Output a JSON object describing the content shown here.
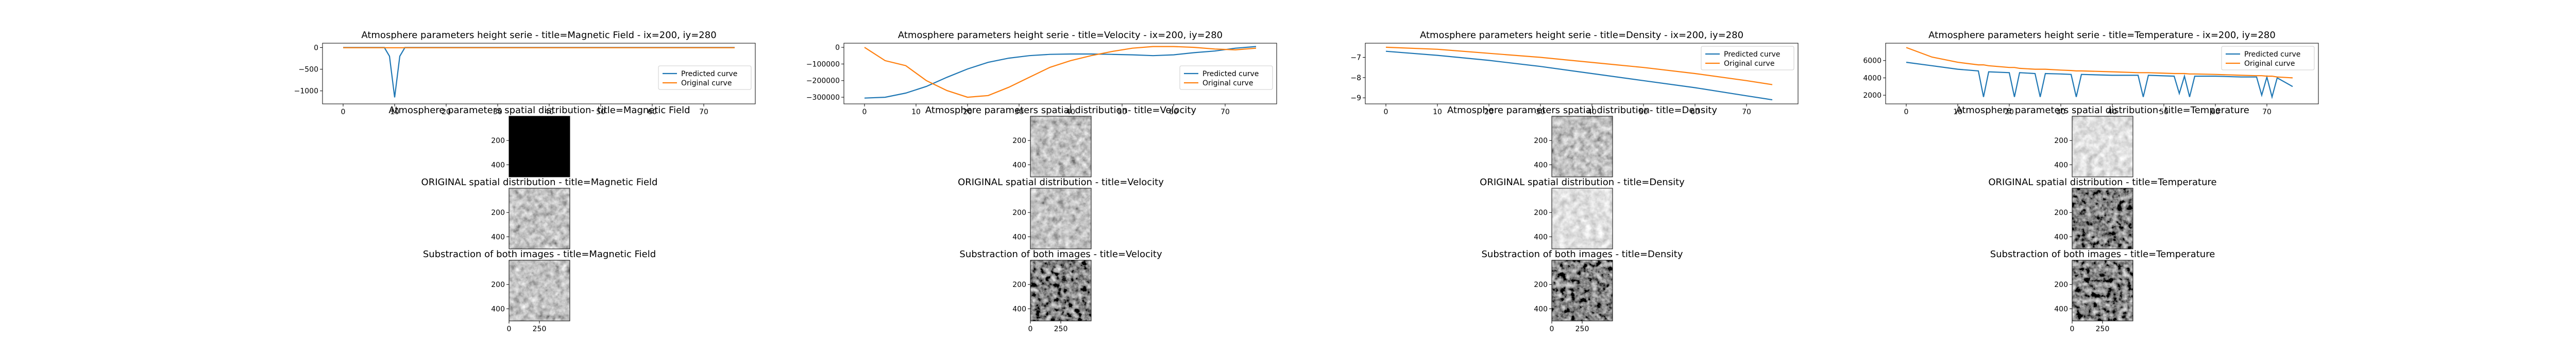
{
  "colors": {
    "predicted": "#1f77b4",
    "original": "#ff7f0e"
  },
  "legend": {
    "predicted": "Predicted curve",
    "original": "Original curve"
  },
  "columns": [
    {
      "line_chart": {
        "type": "line",
        "title": "Atmosphere parameters height serie - title=Magnetic Field - ix=200, iy=280",
        "legend_position": "center-right",
        "xlim": [
          -4,
          80
        ],
        "ylim": [
          -1300,
          100
        ],
        "xticks": [
          0,
          10,
          20,
          30,
          40,
          50,
          60,
          70
        ],
        "yticks": [
          0,
          -500,
          -1000
        ],
        "x": [
          0,
          2,
          4,
          6,
          8,
          9,
          10,
          11,
          12,
          14,
          16,
          18,
          20,
          22,
          24,
          26,
          28,
          30,
          32,
          34,
          36,
          38,
          40,
          42,
          44,
          46,
          48,
          50,
          52,
          54,
          56,
          58,
          60,
          62,
          64,
          66,
          68,
          70,
          72,
          74,
          76
        ],
        "series": [
          {
            "name": "Predicted curve",
            "values": [
              0,
              0,
              0,
              0,
              0,
              -200,
              -1150,
              -200,
              0,
              0,
              0,
              0,
              0,
              0,
              0,
              0,
              0,
              0,
              0,
              0,
              0,
              0,
              0,
              0,
              0,
              0,
              0,
              0,
              0,
              0,
              0,
              0,
              0,
              0,
              0,
              0,
              0,
              0,
              0,
              0,
              0
            ]
          },
          {
            "name": "Original curve",
            "values": [
              -5,
              -5,
              -5,
              -5,
              -5,
              -5,
              -5,
              -5,
              -5,
              -5,
              -5,
              -5,
              -5,
              -5,
              -5,
              -5,
              -5,
              -5,
              -5,
              -5,
              -5,
              -5,
              -5,
              -5,
              -5,
              -5,
              -5,
              -5,
              -5,
              -5,
              -5,
              -5,
              -5,
              -5,
              -5,
              -5,
              -5,
              -5,
              -5,
              -5,
              -5
            ]
          }
        ]
      },
      "images": [
        {
          "title": "Atmosphere parameters spatial distribution- title=Magnetic Field",
          "tone": "black"
        },
        {
          "title": "ORIGINAL spatial distribution - title=Magnetic Field",
          "tone": "gray"
        },
        {
          "title": "Substraction of both images - title=Magnetic Field",
          "tone": "gray"
        }
      ]
    },
    {
      "line_chart": {
        "type": "line",
        "title": "Atmosphere parameters height serie - title=Velocity - ix=200, iy=280",
        "legend_position": "center-right",
        "xlim": [
          -4,
          80
        ],
        "ylim": [
          -340000,
          25000
        ],
        "xticks": [
          0,
          10,
          20,
          30,
          40,
          50,
          60,
          70
        ],
        "yticks": [
          0,
          -100000,
          -200000,
          -300000
        ],
        "x": [
          0,
          4,
          8,
          12,
          16,
          20,
          24,
          28,
          32,
          36,
          40,
          44,
          48,
          52,
          56,
          60,
          64,
          68,
          72,
          76
        ],
        "series": [
          {
            "name": "Predicted curve",
            "values": [
              -305000,
              -300000,
              -275000,
              -235000,
              -180000,
              -130000,
              -90000,
              -65000,
              -50000,
              -42000,
              -40000,
              -40000,
              -42000,
              -45000,
              -50000,
              -45000,
              -32000,
              -22000,
              -5000,
              5000
            ]
          },
          {
            "name": "Original curve",
            "values": [
              0,
              -80000,
              -110000,
              -200000,
              -260000,
              -300000,
              -290000,
              -240000,
              -180000,
              -120000,
              -80000,
              -50000,
              -25000,
              -5000,
              5000,
              5000,
              0,
              -10000,
              -15000,
              -5000
            ]
          }
        ]
      },
      "images": [
        {
          "title": "Atmosphere parameters spatial distribution- title=Velocity",
          "tone": "gray"
        },
        {
          "title": "ORIGINAL spatial distribution - title=Velocity",
          "tone": "gray"
        },
        {
          "title": "Substraction of both images - title=Velocity",
          "tone": "dark"
        }
      ]
    },
    {
      "line_chart": {
        "type": "line",
        "title": "Atmosphere parameters height serie - title=Density - ix=200, iy=280",
        "legend_position": "upper-right",
        "xlim": [
          -4,
          80
        ],
        "ylim": [
          -9.3,
          -6.3
        ],
        "xticks": [
          0,
          10,
          20,
          30,
          40,
          50,
          60,
          70
        ],
        "yticks": [
          -7,
          -8,
          -9
        ],
        "x": [
          0,
          10,
          20,
          30,
          40,
          50,
          60,
          70,
          75
        ],
        "series": [
          {
            "name": "Predicted curve",
            "values": [
              -6.7,
              -6.9,
              -7.15,
              -7.45,
              -7.8,
              -8.15,
              -8.5,
              -8.9,
              -9.1
            ]
          },
          {
            "name": "Original curve",
            "values": [
              -6.5,
              -6.6,
              -6.8,
              -7.0,
              -7.25,
              -7.5,
              -7.8,
              -8.15,
              -8.35
            ]
          }
        ]
      },
      "images": [
        {
          "title": "Atmosphere parameters spatial distribution- title=Density",
          "tone": "gray"
        },
        {
          "title": "ORIGINAL spatial distribution - title=Density",
          "tone": "light"
        },
        {
          "title": "Substraction of both images - title=Density",
          "tone": "dark"
        }
      ]
    },
    {
      "line_chart": {
        "type": "line",
        "title": "Atmosphere parameters height serie - title=Temperature - ix=200, iy=280",
        "legend_position": "upper-right",
        "xlim": [
          -4,
          80
        ],
        "ylim": [
          1000,
          8000
        ],
        "xticks": [
          0,
          10,
          20,
          30,
          40,
          50,
          60,
          70
        ],
        "yticks": [
          2000,
          4000,
          6000
        ],
        "x": [
          0,
          5,
          10,
          14,
          15,
          16,
          20,
          21,
          22,
          25,
          26,
          27,
          30,
          32,
          33,
          34,
          40,
          45,
          46,
          47,
          52,
          53,
          54,
          55,
          56,
          60,
          65,
          68,
          69,
          70,
          71,
          72,
          75
        ],
        "series": [
          {
            "name": "Predicted curve",
            "values": [
              5800,
              5400,
              5000,
              4800,
              1800,
              4700,
              4600,
              1800,
              4600,
              4500,
              1800,
              4500,
              4450,
              4400,
              1800,
              4400,
              4300,
              4300,
              1800,
              4300,
              4200,
              2200,
              4200,
              1800,
              4200,
              4200,
              4100,
              4100,
              2000,
              4100,
              1800,
              4000,
              3000
            ]
          },
          {
            "name": "Original curve",
            "values": [
              7500,
              6400,
              5800,
              5500,
              5500,
              5400,
              5200,
              5200,
              5100,
              5000,
              5000,
              5000,
              4900,
              4850,
              4800,
              4800,
              4700,
              4600,
              4600,
              4600,
              4500,
              4500,
              4500,
              4450,
              4450,
              4400,
              4300,
              4250,
              4250,
              4200,
              4200,
              4100,
              4000
            ]
          }
        ]
      },
      "images": [
        {
          "title": "Atmosphere parameters spatial distribution- title=Temperature",
          "tone": "light"
        },
        {
          "title": "ORIGINAL spatial distribution - title=Temperature",
          "tone": "dark"
        },
        {
          "title": "Substraction of both images - title=Temperature",
          "tone": "dark"
        }
      ]
    }
  ],
  "image_axes": {
    "yticks": [
      200,
      400
    ],
    "xticks": [
      0,
      250
    ],
    "extent": 500
  }
}
